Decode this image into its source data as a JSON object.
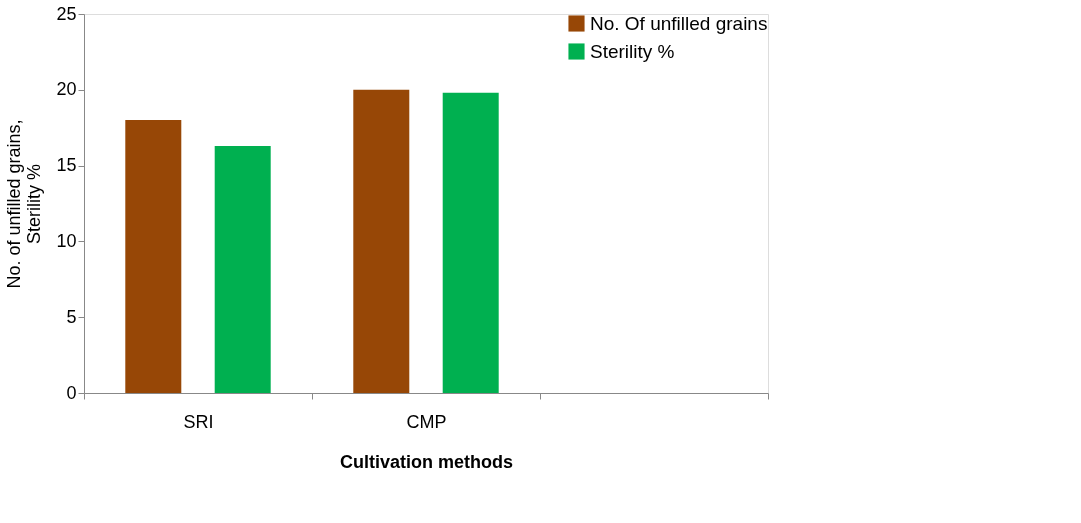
{
  "chart_data": {
    "type": "bar",
    "xlabel": "Cultivation methods",
    "ylabel": "No. of unfilled grains, Sterility %",
    "categories": [
      "SRI",
      "CMP",
      null
    ],
    "series": [
      {
        "name": "No. Of unfilled grains",
        "color": "#974706",
        "values": [
          18,
          20,
          null
        ]
      },
      {
        "name": "Sterility %",
        "color": "#00b050",
        "values": [
          16.3,
          19.8,
          null
        ]
      }
    ],
    "ylim": [
      0,
      25
    ],
    "yticks": [
      0,
      5,
      10,
      15,
      20,
      25
    ],
    "grid": false,
    "legend": "top right"
  }
}
